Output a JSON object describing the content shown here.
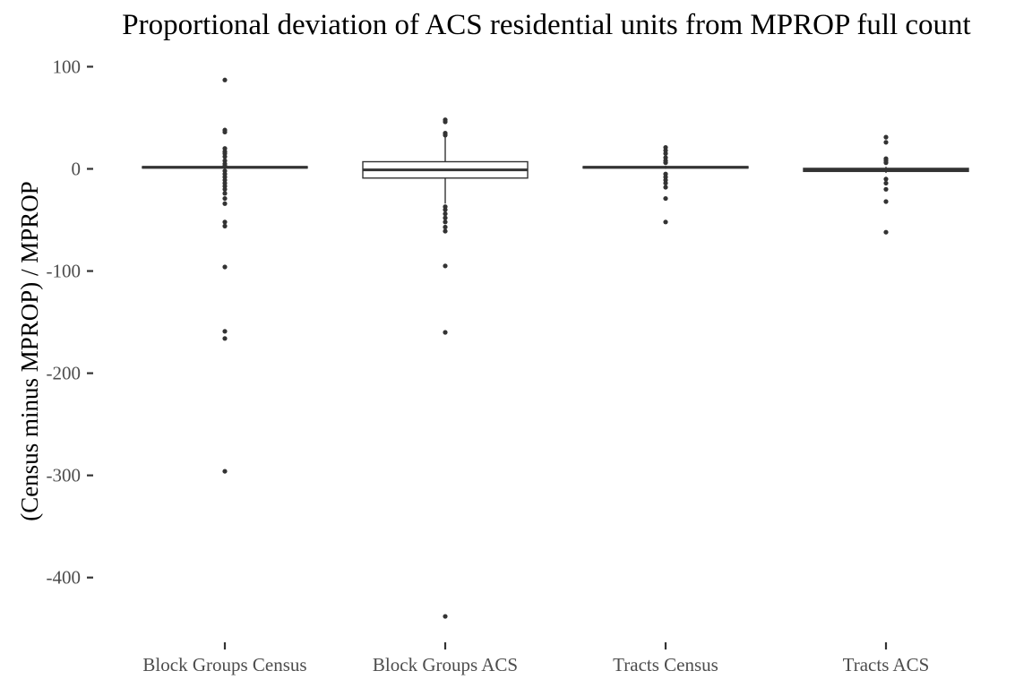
{
  "chart_data": {
    "type": "boxplot",
    "title": "Proportional deviation of ACS residential units from MPROP full count",
    "xlabel": "",
    "ylabel": "(Census minus MPROP) / MPROP",
    "ylim": [
      -460,
      110
    ],
    "yticks": [
      100,
      0,
      -100,
      -200,
      -300,
      -400
    ],
    "yticklabels": [
      "100",
      "0",
      "-100",
      "-200",
      "-300",
      "-400"
    ],
    "grid": false,
    "legend": "none",
    "categories": [
      "Block Groups Census",
      "Block Groups ACS",
      "Tracts Census",
      "Tracts ACS"
    ],
    "boxes": [
      {
        "category": "Block Groups Census",
        "whisker_low": 0,
        "q1": 0.8,
        "median": 1.5,
        "q3": 2.2,
        "whisker_high": 3,
        "outliers": [
          87,
          38,
          36,
          20,
          17,
          15,
          12,
          8,
          5,
          3,
          -2,
          -5,
          -8,
          -11,
          -14,
          -17,
          -20,
          -24,
          -29,
          -34,
          -52,
          -56,
          -96,
          -159,
          -166,
          -296
        ]
      },
      {
        "category": "Block Groups ACS",
        "whisker_low": -34,
        "q1": -9,
        "median": -1,
        "q3": 7,
        "whisker_high": 31,
        "outliers": [
          48,
          46,
          35,
          33,
          -37,
          -40,
          -44,
          -48,
          -52,
          -57,
          -61,
          -95,
          -160,
          -438
        ]
      },
      {
        "category": "Tracts Census",
        "whisker_low": 0,
        "q1": 0.8,
        "median": 1.5,
        "q3": 2.2,
        "whisker_high": 3,
        "outliers": [
          21,
          18,
          15,
          11,
          8,
          6,
          -5,
          -8,
          -11,
          -14,
          -18,
          -29,
          -52
        ]
      },
      {
        "category": "Tracts ACS",
        "whisker_low": -4,
        "q1": -2.5,
        "median": -1,
        "q3": 0.5,
        "whisker_high": 2,
        "outliers": [
          31,
          26,
          10,
          8,
          6,
          -10,
          -14,
          -20,
          -32,
          -62
        ]
      }
    ],
    "colors": {
      "box_stroke": "#333333",
      "box_fill": "#ffffff",
      "outlier": "#333333",
      "tick_text": "#4d4d4d",
      "title_text": "#000000"
    }
  }
}
